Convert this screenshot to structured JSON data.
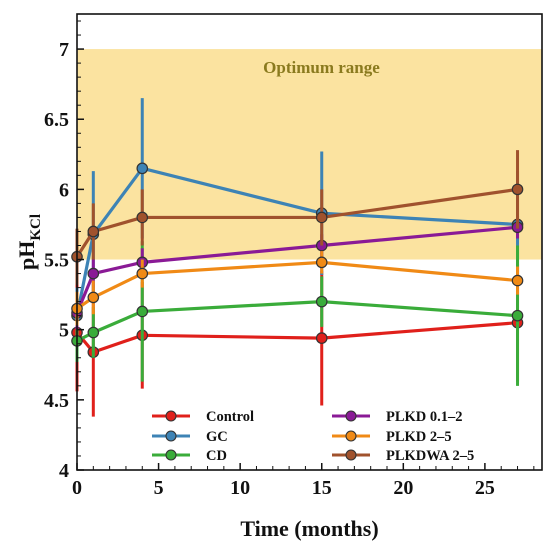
{
  "chart_data": {
    "type": "line",
    "xlabel": "Time (months)",
    "ylabel_main": "pH",
    "ylabel_sub": "KCl",
    "xlim": [
      0,
      28.5
    ],
    "ylim": [
      4,
      7.25
    ],
    "xticks": [
      0,
      5,
      10,
      15,
      20,
      25
    ],
    "yticks": [
      4,
      4.5,
      5,
      5.5,
      6,
      6.5,
      7
    ],
    "ytick_labels": [
      "4",
      "4.5",
      "5",
      "5.5",
      "6",
      "6.5",
      "7"
    ],
    "grid": false,
    "band": {
      "label": "Optimum range",
      "y_range": [
        5.5,
        7.0
      ],
      "color": "#fbe3a0"
    },
    "legend_position": "bottom",
    "series": [
      {
        "name": "Control",
        "color": "#e0201b",
        "x": [
          0,
          1,
          4,
          15,
          27
        ],
        "y": [
          4.98,
          4.84,
          4.96,
          4.94,
          5.05
        ],
        "err": [
          0.42,
          0.46,
          0.38,
          0.48,
          0.42
        ]
      },
      {
        "name": "GC",
        "color": "#3d83b5",
        "x": [
          0,
          1,
          4,
          15,
          27
        ],
        "y": [
          5.1,
          5.68,
          6.15,
          5.83,
          5.75
        ],
        "err": [
          0.2,
          0.45,
          0.5,
          0.44,
          0.38
        ]
      },
      {
        "name": "CD",
        "color": "#3aac3a",
        "x": [
          0,
          1,
          4,
          15,
          27
        ],
        "y": [
          4.92,
          4.98,
          5.13,
          5.2,
          5.1
        ],
        "err": [
          0.15,
          0.18,
          0.5,
          0.18,
          0.5
        ]
      },
      {
        "name": "PLKD 0.1–2",
        "color": "#8a1a96",
        "x": [
          0,
          1,
          4,
          15,
          27
        ],
        "y": [
          5.12,
          5.4,
          5.48,
          5.6,
          5.73
        ],
        "err": [
          0.12,
          0.1,
          0.1,
          0.08,
          0.08
        ]
      },
      {
        "name": "PLKD 2–5",
        "color": "#f08a16",
        "x": [
          0,
          1,
          4,
          15,
          27
        ],
        "y": [
          5.15,
          5.23,
          5.4,
          5.48,
          5.35
        ],
        "err": [
          0.12,
          0.12,
          0.1,
          0.08,
          0.1
        ]
      },
      {
        "name": "PLKDWA 2–5",
        "color": "#a0522d",
        "x": [
          0,
          1,
          4,
          15,
          27
        ],
        "y": [
          5.52,
          5.7,
          5.8,
          5.8,
          6.0
        ],
        "err": [
          0.2,
          0.2,
          0.2,
          0.2,
          0.28
        ]
      }
    ]
  }
}
